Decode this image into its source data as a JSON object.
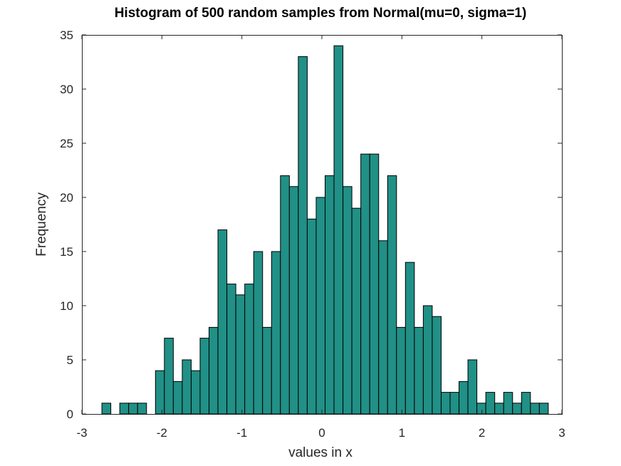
{
  "chart_data": {
    "type": "bar",
    "title": "Histogram of 500 random samples from Normal(mu=0, sigma=1)",
    "xlabel": "values in x",
    "ylabel": "Frequency",
    "xlim": [
      -3,
      3
    ],
    "ylim": [
      0,
      35
    ],
    "xticks": [
      "-3",
      "-2",
      "-1",
      "0",
      "1",
      "2",
      "3"
    ],
    "yticks": [
      "0",
      "5",
      "10",
      "15",
      "20",
      "25",
      "30",
      "35"
    ],
    "bar_color": "#219086",
    "bin_start": -2.75,
    "bin_width": 0.1116,
    "values": [
      1,
      0,
      1,
      1,
      1,
      0,
      4,
      7,
      3,
      5,
      4,
      7,
      8,
      17,
      12,
      11,
      12,
      15,
      8,
      15,
      22,
      21,
      33,
      18,
      20,
      22,
      34,
      21,
      19,
      24,
      24,
      16,
      22,
      8,
      14,
      8,
      10,
      9,
      2,
      2,
      3,
      5,
      1,
      2,
      1,
      2,
      1,
      2,
      1,
      1
    ]
  }
}
